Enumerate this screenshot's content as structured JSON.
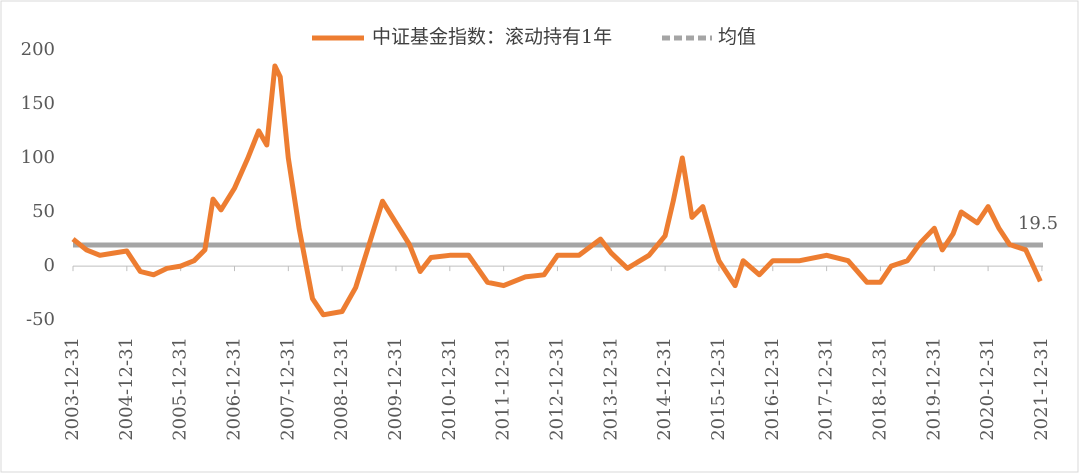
{
  "chart_data": {
    "type": "line",
    "x": [
      2004.0,
      2004.25,
      2004.5,
      2004.75,
      2005.0,
      2005.25,
      2005.5,
      2005.75,
      2006.0,
      2006.25,
      2006.45,
      2006.6,
      2006.75,
      2007.0,
      2007.25,
      2007.45,
      2007.6,
      2007.75,
      2007.85,
      2008.0,
      2008.2,
      2008.45,
      2008.65,
      2009.0,
      2009.25,
      2009.5,
      2009.75,
      2010.0,
      2010.25,
      2010.45,
      2010.65,
      2011.0,
      2011.35,
      2011.7,
      2012.0,
      2012.4,
      2012.75,
      2013.0,
      2013.4,
      2013.8,
      2014.0,
      2014.3,
      2014.7,
      2015.0,
      2015.15,
      2015.32,
      2015.5,
      2015.7,
      2015.9,
      2016.0,
      2016.3,
      2016.45,
      2016.75,
      2017.0,
      2017.5,
      2018.0,
      2018.4,
      2018.75,
      2019.0,
      2019.2,
      2019.5,
      2019.75,
      2020.0,
      2020.15,
      2020.35,
      2020.5,
      2020.8,
      2021.0,
      2021.2,
      2021.4,
      2021.7,
      2021.97
    ],
    "series": [
      {
        "name": "中证基金指数：滚动持有1年",
        "color": "#ED7D31",
        "values": [
          25,
          15,
          10,
          12,
          14,
          -5,
          -8,
          -2,
          0,
          5,
          15,
          62,
          52,
          72,
          100,
          125,
          112,
          185,
          175,
          100,
          35,
          -30,
          -45,
          -42,
          -20,
          20,
          60,
          40,
          20,
          -5,
          8,
          10,
          10,
          -15,
          -18,
          -10,
          -8,
          10,
          10,
          25,
          12,
          -2,
          10,
          28,
          60,
          100,
          45,
          55,
          20,
          5,
          -18,
          5,
          -8,
          5,
          5,
          10,
          5,
          -15,
          -15,
          0,
          5,
          22,
          35,
          15,
          30,
          50,
          40,
          55,
          35,
          20,
          15,
          -14
        ]
      }
    ],
    "mean": {
      "name": "均值",
      "value": 19.5,
      "color": "#A5A5A5"
    },
    "xlim": [
      2004.0,
      2022.02
    ],
    "xticks": [
      {
        "value": 2004,
        "label": "2003-12-31"
      },
      {
        "value": 2005,
        "label": "2004-12-31"
      },
      {
        "value": 2006,
        "label": "2005-12-31"
      },
      {
        "value": 2007,
        "label": "2006-12-31"
      },
      {
        "value": 2008,
        "label": "2007-12-31"
      },
      {
        "value": 2009,
        "label": "2008-12-31"
      },
      {
        "value": 2010,
        "label": "2009-12-31"
      },
      {
        "value": 2011,
        "label": "2010-12-31"
      },
      {
        "value": 2012,
        "label": "2011-12-31"
      },
      {
        "value": 2013,
        "label": "2012-12-31"
      },
      {
        "value": 2014,
        "label": "2013-12-31"
      },
      {
        "value": 2015,
        "label": "2014-12-31"
      },
      {
        "value": 2016,
        "label": "2015-12-31"
      },
      {
        "value": 2017,
        "label": "2016-12-31"
      },
      {
        "value": 2018,
        "label": "2017-12-31"
      },
      {
        "value": 2019,
        "label": "2018-12-31"
      },
      {
        "value": 2020,
        "label": "2019-12-31"
      },
      {
        "value": 2021,
        "label": "2020-12-31"
      },
      {
        "value": 2022,
        "label": "2021-12-31"
      }
    ],
    "ylim": [
      -60,
      210
    ],
    "yticks": [
      -50,
      0,
      50,
      100,
      150,
      200
    ],
    "grid": false
  }
}
